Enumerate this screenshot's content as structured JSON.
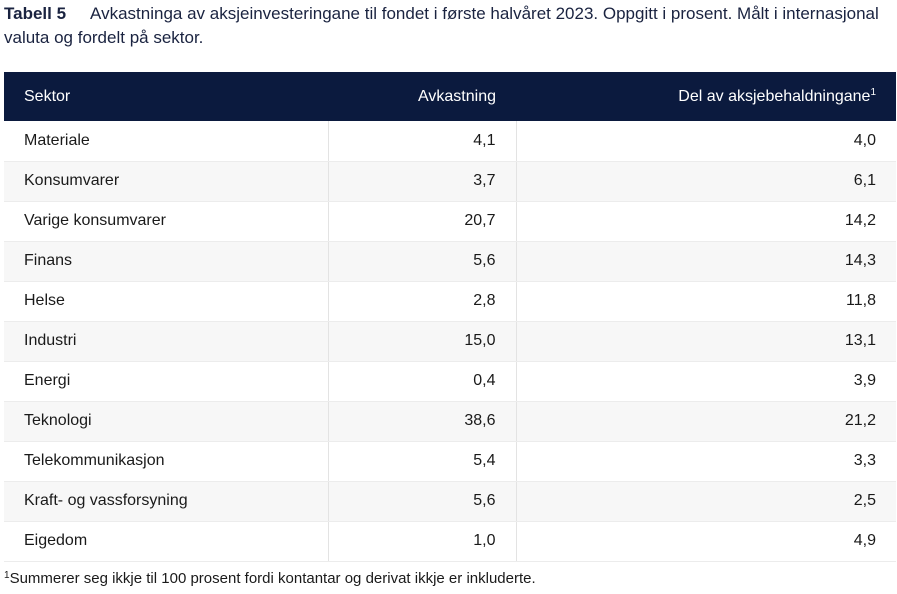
{
  "caption": {
    "label": "Tabell 5",
    "text": "Avkastninga av aksjeinvesteringane til fondet i første halvåret 2023. Oppgitt i prosent. Målt i internasjonal valuta og fordelt på sektor."
  },
  "table": {
    "headers": {
      "sector": "Sektor",
      "return": "Avkastning",
      "share": "Del av aksjebehaldningane",
      "share_note": "1"
    },
    "rows": [
      {
        "sector": "Materiale",
        "return": "4,1",
        "share": "4,0"
      },
      {
        "sector": "Konsumvarer",
        "return": "3,7",
        "share": "6,1"
      },
      {
        "sector": "Varige konsumvarer",
        "return": "20,7",
        "share": "14,2"
      },
      {
        "sector": "Finans",
        "return": "5,6",
        "share": "14,3"
      },
      {
        "sector": "Helse",
        "return": "2,8",
        "share": "11,8"
      },
      {
        "sector": "Industri",
        "return": "15,0",
        "share": "13,1"
      },
      {
        "sector": "Energi",
        "return": "0,4",
        "share": "3,9"
      },
      {
        "sector": "Teknologi",
        "return": "38,6",
        "share": "21,2"
      },
      {
        "sector": "Telekommunikasjon",
        "return": "5,4",
        "share": "3,3"
      },
      {
        "sector": "Kraft- og vassforsyning",
        "return": "5,6",
        "share": "2,5"
      },
      {
        "sector": "Eigedom",
        "return": "1,0",
        "share": "4,9"
      }
    ]
  },
  "footnote": {
    "marker": "1",
    "text": "Summerer seg ikkje til 100 prosent fordi kontantar og derivat ikkje er inkluderte."
  }
}
